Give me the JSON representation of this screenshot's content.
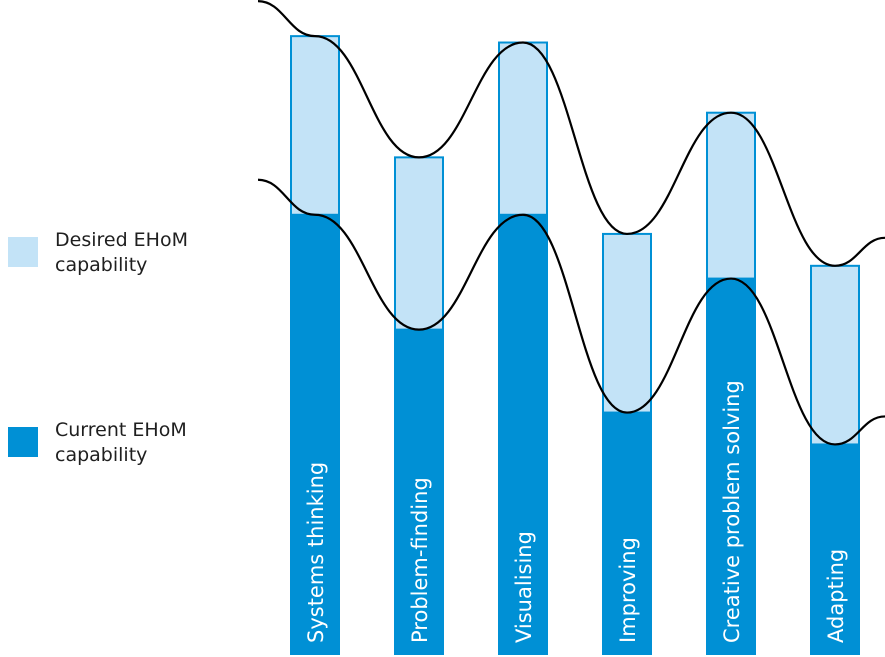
{
  "chart_data": {
    "type": "bar",
    "categories": [
      "Systems thinking",
      "Problem-finding",
      "Visualising",
      "Improving",
      "Creative problem solving",
      "Adapting"
    ],
    "series": [
      {
        "name": "Current EHoM capability",
        "values": [
          69,
          51,
          69,
          38,
          59,
          33
        ]
      },
      {
        "name": "Desired EHoM capability",
        "values": [
          97,
          78,
          96,
          66,
          85,
          61
        ]
      }
    ],
    "ylim": [
      0,
      100
    ],
    "colors": {
      "current": "#0090d5",
      "desired": "#c3e3f7",
      "desired_border": "#0090d5",
      "curve": "#000000",
      "bar_label": "#ffffff"
    }
  },
  "legend": {
    "desired": {
      "label": "Desired EHoM capability",
      "color": "#c3e3f7"
    },
    "current": {
      "label": "Current EHoM capability",
      "color": "#0090d5"
    }
  }
}
